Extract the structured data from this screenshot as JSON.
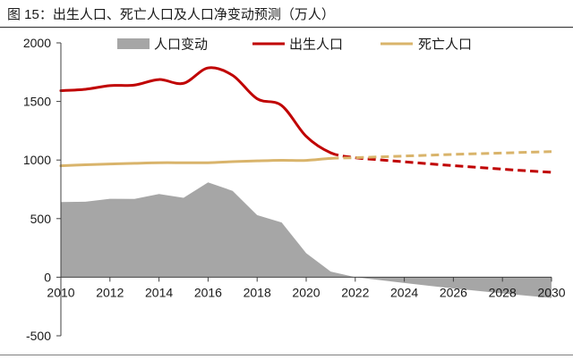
{
  "chart_data": {
    "type": "line",
    "title": "图 15：出生人口、死亡人口及人口净变动预测（万人）",
    "x": [
      2010,
      2011,
      2012,
      2013,
      2014,
      2015,
      2016,
      2017,
      2018,
      2019,
      2020,
      2021,
      2022,
      2023,
      2024,
      2025,
      2026,
      2027,
      2028,
      2029,
      2030
    ],
    "xlim": [
      2010,
      2030
    ],
    "xticks": [
      2010,
      2012,
      2014,
      2016,
      2018,
      2020,
      2022,
      2024,
      2026,
      2028,
      2030
    ],
    "ylim": [
      -500,
      2000
    ],
    "yticks": [
      -500,
      0,
      500,
      1000,
      1500,
      2000
    ],
    "grid": false,
    "legend_position": "top",
    "series": [
      {
        "name": "人口变动",
        "type": "area",
        "color": "#a6a6a6",
        "values": [
          641,
          644,
          669,
          668,
          710,
          678,
          809,
          737,
          530,
          467,
          205,
          48,
          0,
          -25,
          -49,
          -73,
          -96,
          -117,
          -138,
          -158,
          -177
        ]
      },
      {
        "name": "出生人口",
        "type": "line",
        "color": "#c00000",
        "dashed_from": 2021,
        "values": [
          1592,
          1604,
          1635,
          1640,
          1687,
          1655,
          1786,
          1723,
          1523,
          1465,
          1202,
          1062,
          1020,
          1002,
          985,
          968,
          952,
          937,
          922,
          908,
          895
        ]
      },
      {
        "name": "死亡人口",
        "type": "line",
        "color": "#d9b46b",
        "dashed_from": 2021,
        "values": [
          951,
          960,
          966,
          972,
          977,
          977,
          977,
          986,
          993,
          998,
          997,
          1014,
          1020,
          1027,
          1034,
          1041,
          1048,
          1054,
          1060,
          1066,
          1072
        ]
      }
    ]
  }
}
